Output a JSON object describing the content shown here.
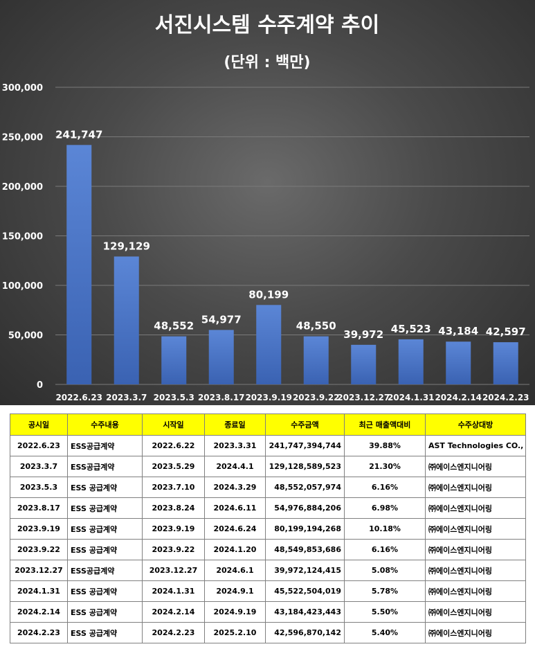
{
  "chart_data": {
    "type": "bar",
    "title": "서진시스템 수주계약 추이",
    "subtitle": "(단위 : 백만)",
    "categories": [
      "2022.6.23",
      "2023.3.7",
      "2023.5.3",
      "2023.8.17",
      "2023.9.19",
      "2023.9.22",
      "2023.12.27",
      "2024.1.31",
      "2024.2.14",
      "2024.2.23"
    ],
    "values": [
      241747,
      129129,
      48552,
      54977,
      80199,
      48550,
      39972,
      45523,
      43184,
      42597
    ],
    "value_labels": [
      "241,747",
      "129,129",
      "48,552",
      "54,977",
      "80,199",
      "48,550",
      "39,972",
      "45,523",
      "43,184",
      "42,597"
    ],
    "y_ticks": [
      0,
      50000,
      100000,
      150000,
      200000,
      250000,
      300000
    ],
    "y_tick_labels": [
      "0",
      "50,000",
      "100,000",
      "150,000",
      "200,000",
      "250,000",
      "300,000"
    ],
    "ylim": [
      0,
      300000
    ],
    "grid": true,
    "bar_color": "#4472c4",
    "background": "#3f3f3f"
  },
  "table": {
    "header_color": "#ffff00",
    "headers": [
      "공시일",
      "수주내용",
      "시작일",
      "종료일",
      "수주금액",
      "최근 매출액대비",
      "수주상대방"
    ],
    "rows": [
      [
        "2022.6.23",
        "ESS공급계약",
        "2022.6.22",
        "2023.3.31",
        "241,747,394,744",
        "39.88%",
        "AST Technologies CO., LTD"
      ],
      [
        "2023.3.7",
        "ESS공급계약",
        "2023.5.29",
        "2024.4.1",
        "129,128,589,523",
        "21.30%",
        "㈜에이스엔지니어링"
      ],
      [
        "2023.5.3",
        "ESS 공급계약",
        "2023.7.10",
        "2024.3.29",
        "48,552,057,974",
        "6.16%",
        "㈜에이스엔지니어링"
      ],
      [
        "2023.8.17",
        "ESS 공급계약",
        "2023.8.24",
        "2024.6.11",
        "54,976,884,206",
        "6.98%",
        "㈜에이스엔지니어링"
      ],
      [
        "2023.9.19",
        "ESS 공급계약",
        "2023.9.19",
        "2024.6.24",
        "80,199,194,268",
        "10.18%",
        "㈜에이스엔지니어링"
      ],
      [
        "2023.9.22",
        "ESS 공급계약",
        "2023.9.22",
        "2024.1.20",
        "48,549,853,686",
        "6.16%",
        "㈜에이스엔지니어링"
      ],
      [
        "2023.12.27",
        "ESS공급계약",
        "2023.12.27",
        "2024.6.1",
        "39,972,124,415",
        "5.08%",
        "㈜에이스엔지니어링"
      ],
      [
        "2024.1.31",
        "ESS 공급계약",
        "2024.1.31",
        "2024.9.1",
        "45,522,504,019",
        "5.78%",
        "㈜에이스엔지니어링"
      ],
      [
        "2024.2.14",
        "ESS 공급계약",
        "2024.2.14",
        "2024.9.19",
        "43,184,423,443",
        "5.50%",
        "㈜에이스엔지니어링"
      ],
      [
        "2024.2.23",
        "ESS 공급계약",
        "2024.2.23",
        "2025.2.10",
        "42,596,870,142",
        "5.40%",
        "㈜에이스엔지니어링"
      ]
    ]
  }
}
